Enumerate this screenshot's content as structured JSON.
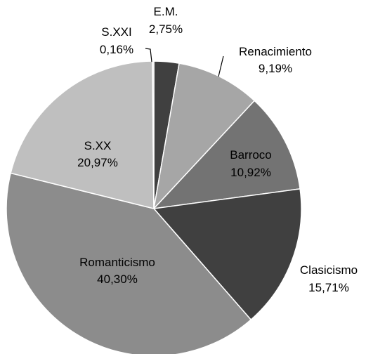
{
  "chart_data": {
    "type": "pie",
    "title": "",
    "start": "top",
    "direction": "clockwise",
    "slices": [
      {
        "label": "E.M.",
        "value": 2.75,
        "value_text": "2,75%",
        "color": "#404040"
      },
      {
        "label": "Renacimiento",
        "value": 9.19,
        "value_text": "9,19%",
        "color": "#a6a6a6"
      },
      {
        "label": "Barroco",
        "value": 10.92,
        "value_text": "10,92%",
        "color": "#737373"
      },
      {
        "label": "Clasicismo",
        "value": 15.71,
        "value_text": "15,71%",
        "color": "#404040"
      },
      {
        "label": "Romanticismo",
        "value": 40.3,
        "value_text": "40,30%",
        "color": "#8c8c8c"
      },
      {
        "label": "S.XX",
        "value": 20.97,
        "value_text": "20,97%",
        "color": "#bfbfbf"
      },
      {
        "label": "S.XXI",
        "value": 0.16,
        "value_text": "0,16%",
        "color": "#d9d9d9"
      }
    ]
  }
}
